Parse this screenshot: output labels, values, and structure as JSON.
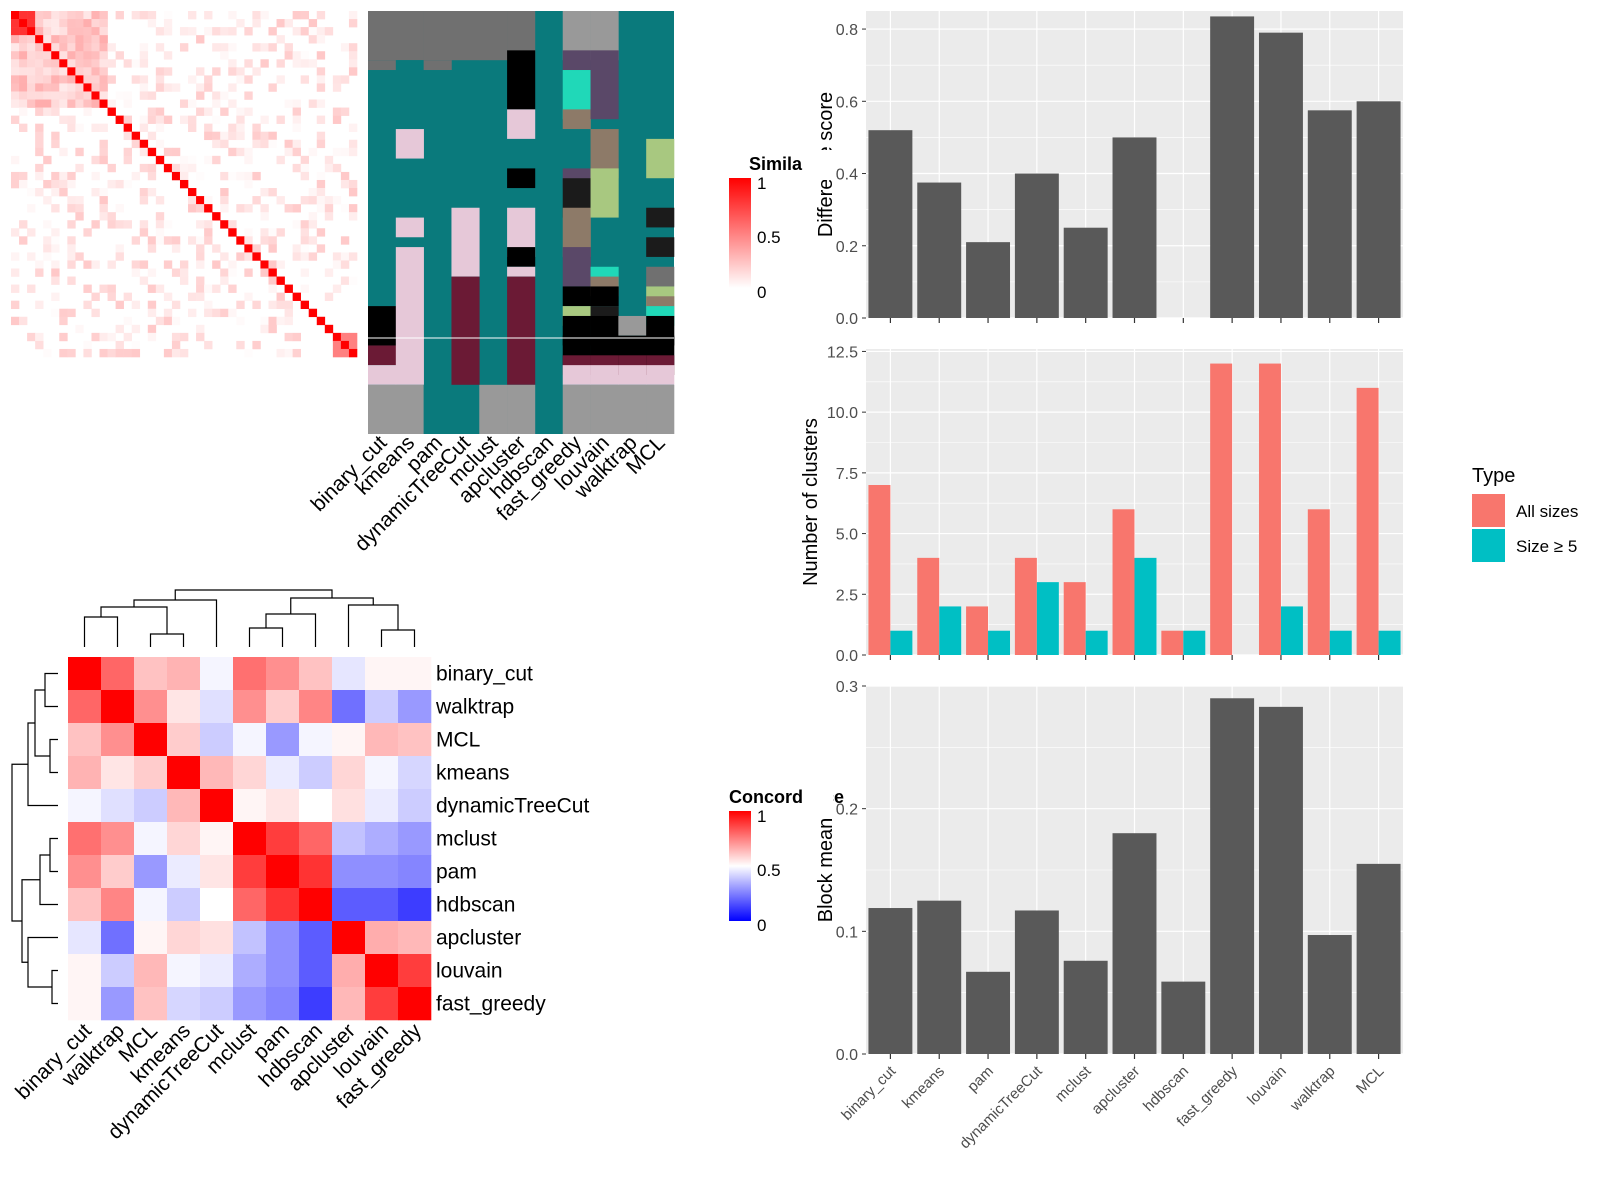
{
  "colors": {
    "sim_low": "#ffffff",
    "sim_high": "#ff0000",
    "conc_low": "#0000ff",
    "conc_mid": "#ffffff",
    "conc_high": "#ff0000",
    "panel_bg": "#ebebeb",
    "grid": "#ffffff",
    "bar_fill": "#595959",
    "all_sizes": "#f8766d",
    "size_ge5": "#00bfc4"
  },
  "chart_data": [
    {
      "type": "heatmap",
      "id": "similarity_heatmap",
      "legend_title": "Similarity",
      "legend_ticks": [
        "1",
        "0.5",
        "0"
      ],
      "n_terms": 43,
      "note_values": "diagonal 1; off-diagonal mostly 0-0.25 with a dense similar block among first ~10 terms and a small block of 3 terms at the end",
      "block_terms": [
        [
          0,
          2
        ],
        [
          40,
          42
        ]
      ]
    },
    {
      "type": "table",
      "id": "cluster_assignment_grid",
      "columns": [
        "binary_cut",
        "kmeans",
        "pam",
        "dynamicTreeCut",
        "mclust",
        "apcluster",
        "hdbscan",
        "fast_greedy",
        "louvain",
        "walktrap",
        "MCL"
      ]
    },
    {
      "type": "heatmap",
      "id": "concordance_heatmap",
      "legend_title": "Concordance",
      "legend_ticks": [
        "1",
        "0.5",
        "0"
      ],
      "labels": [
        "binary_cut",
        "walktrap",
        "MCL",
        "kmeans",
        "dynamicTreeCut",
        "mclust",
        "pam",
        "hdbscan",
        "apcluster",
        "louvain",
        "fast_greedy"
      ],
      "matrix": [
        [
          1.0,
          0.8,
          0.62,
          0.65,
          0.48,
          0.78,
          0.72,
          0.62,
          0.45,
          0.52,
          0.52
        ],
        [
          0.8,
          1.0,
          0.72,
          0.55,
          0.44,
          0.72,
          0.6,
          0.74,
          0.22,
          0.4,
          0.3
        ],
        [
          0.62,
          0.72,
          1.0,
          0.6,
          0.4,
          0.48,
          0.3,
          0.48,
          0.52,
          0.64,
          0.62
        ],
        [
          0.65,
          0.55,
          0.6,
          1.0,
          0.64,
          0.58,
          0.46,
          0.4,
          0.58,
          0.48,
          0.42
        ],
        [
          0.48,
          0.44,
          0.4,
          0.64,
          1.0,
          0.52,
          0.55,
          0.5,
          0.56,
          0.46,
          0.4
        ],
        [
          0.78,
          0.72,
          0.48,
          0.58,
          0.52,
          1.0,
          0.88,
          0.8,
          0.38,
          0.34,
          0.3
        ],
        [
          0.72,
          0.6,
          0.3,
          0.46,
          0.55,
          0.88,
          1.0,
          0.9,
          0.28,
          0.28,
          0.26
        ],
        [
          0.62,
          0.74,
          0.48,
          0.4,
          0.5,
          0.8,
          0.9,
          1.0,
          0.18,
          0.18,
          0.12
        ],
        [
          0.45,
          0.22,
          0.52,
          0.58,
          0.56,
          0.38,
          0.28,
          0.18,
          1.0,
          0.66,
          0.64
        ],
        [
          0.52,
          0.4,
          0.64,
          0.48,
          0.46,
          0.34,
          0.28,
          0.18,
          0.66,
          1.0,
          0.88
        ],
        [
          0.52,
          0.3,
          0.62,
          0.42,
          0.4,
          0.3,
          0.26,
          0.12,
          0.64,
          0.88,
          1.0
        ]
      ]
    },
    {
      "type": "bar",
      "id": "difference_score",
      "categories": [
        "binary_cut",
        "kmeans",
        "pam",
        "dynamicTreeCut",
        "mclust",
        "apcluster",
        "hdbscan",
        "fast_greedy",
        "louvain",
        "walktrap",
        "MCL"
      ],
      "values": [
        0.52,
        0.375,
        0.21,
        0.4,
        0.25,
        0.5,
        0,
        0.835,
        0.79,
        0.575,
        0.6
      ],
      "ylabel": "Difference score",
      "ylim": [
        0,
        0.85
      ],
      "yticks": [
        "0.0",
        "0.2",
        "0.4",
        "0.6",
        "0.8"
      ],
      "grid": true
    },
    {
      "type": "bar",
      "id": "number_of_clusters",
      "categories": [
        "binary_cut",
        "kmeans",
        "pam",
        "dynamicTreeCut",
        "mclust",
        "apcluster",
        "hdbscan",
        "fast_greedy",
        "louvain",
        "walktrap",
        "MCL"
      ],
      "series": [
        {
          "name": "All sizes",
          "values": [
            7,
            4,
            2,
            4,
            3,
            6,
            1,
            12,
            12,
            6,
            11
          ]
        },
        {
          "name": "Size ≥ 5",
          "values": [
            1,
            2,
            1,
            3,
            1,
            4,
            1,
            0,
            2,
            1,
            1
          ]
        }
      ],
      "ylabel": "Number of clusters",
      "ylim": [
        0,
        12.6
      ],
      "yticks": [
        "0.0",
        "2.5",
        "5.0",
        "7.5",
        "10.0",
        "12.5"
      ],
      "legend_title": "Type",
      "legend_position": "right",
      "grid": true
    },
    {
      "type": "bar",
      "id": "block_mean",
      "categories": [
        "binary_cut",
        "kmeans",
        "pam",
        "dynamicTreeCut",
        "mclust",
        "apcluster",
        "hdbscan",
        "fast_greedy",
        "louvain",
        "walktrap",
        "MCL"
      ],
      "values": [
        0.119,
        0.125,
        0.067,
        0.117,
        0.076,
        0.18,
        0.059,
        0.29,
        0.283,
        0.097,
        0.155
      ],
      "ylabel": "Block mean",
      "ylim": [
        0,
        0.3
      ],
      "yticks": [
        "0.0",
        "0.1",
        "0.2",
        "0.3"
      ],
      "grid": true
    }
  ]
}
